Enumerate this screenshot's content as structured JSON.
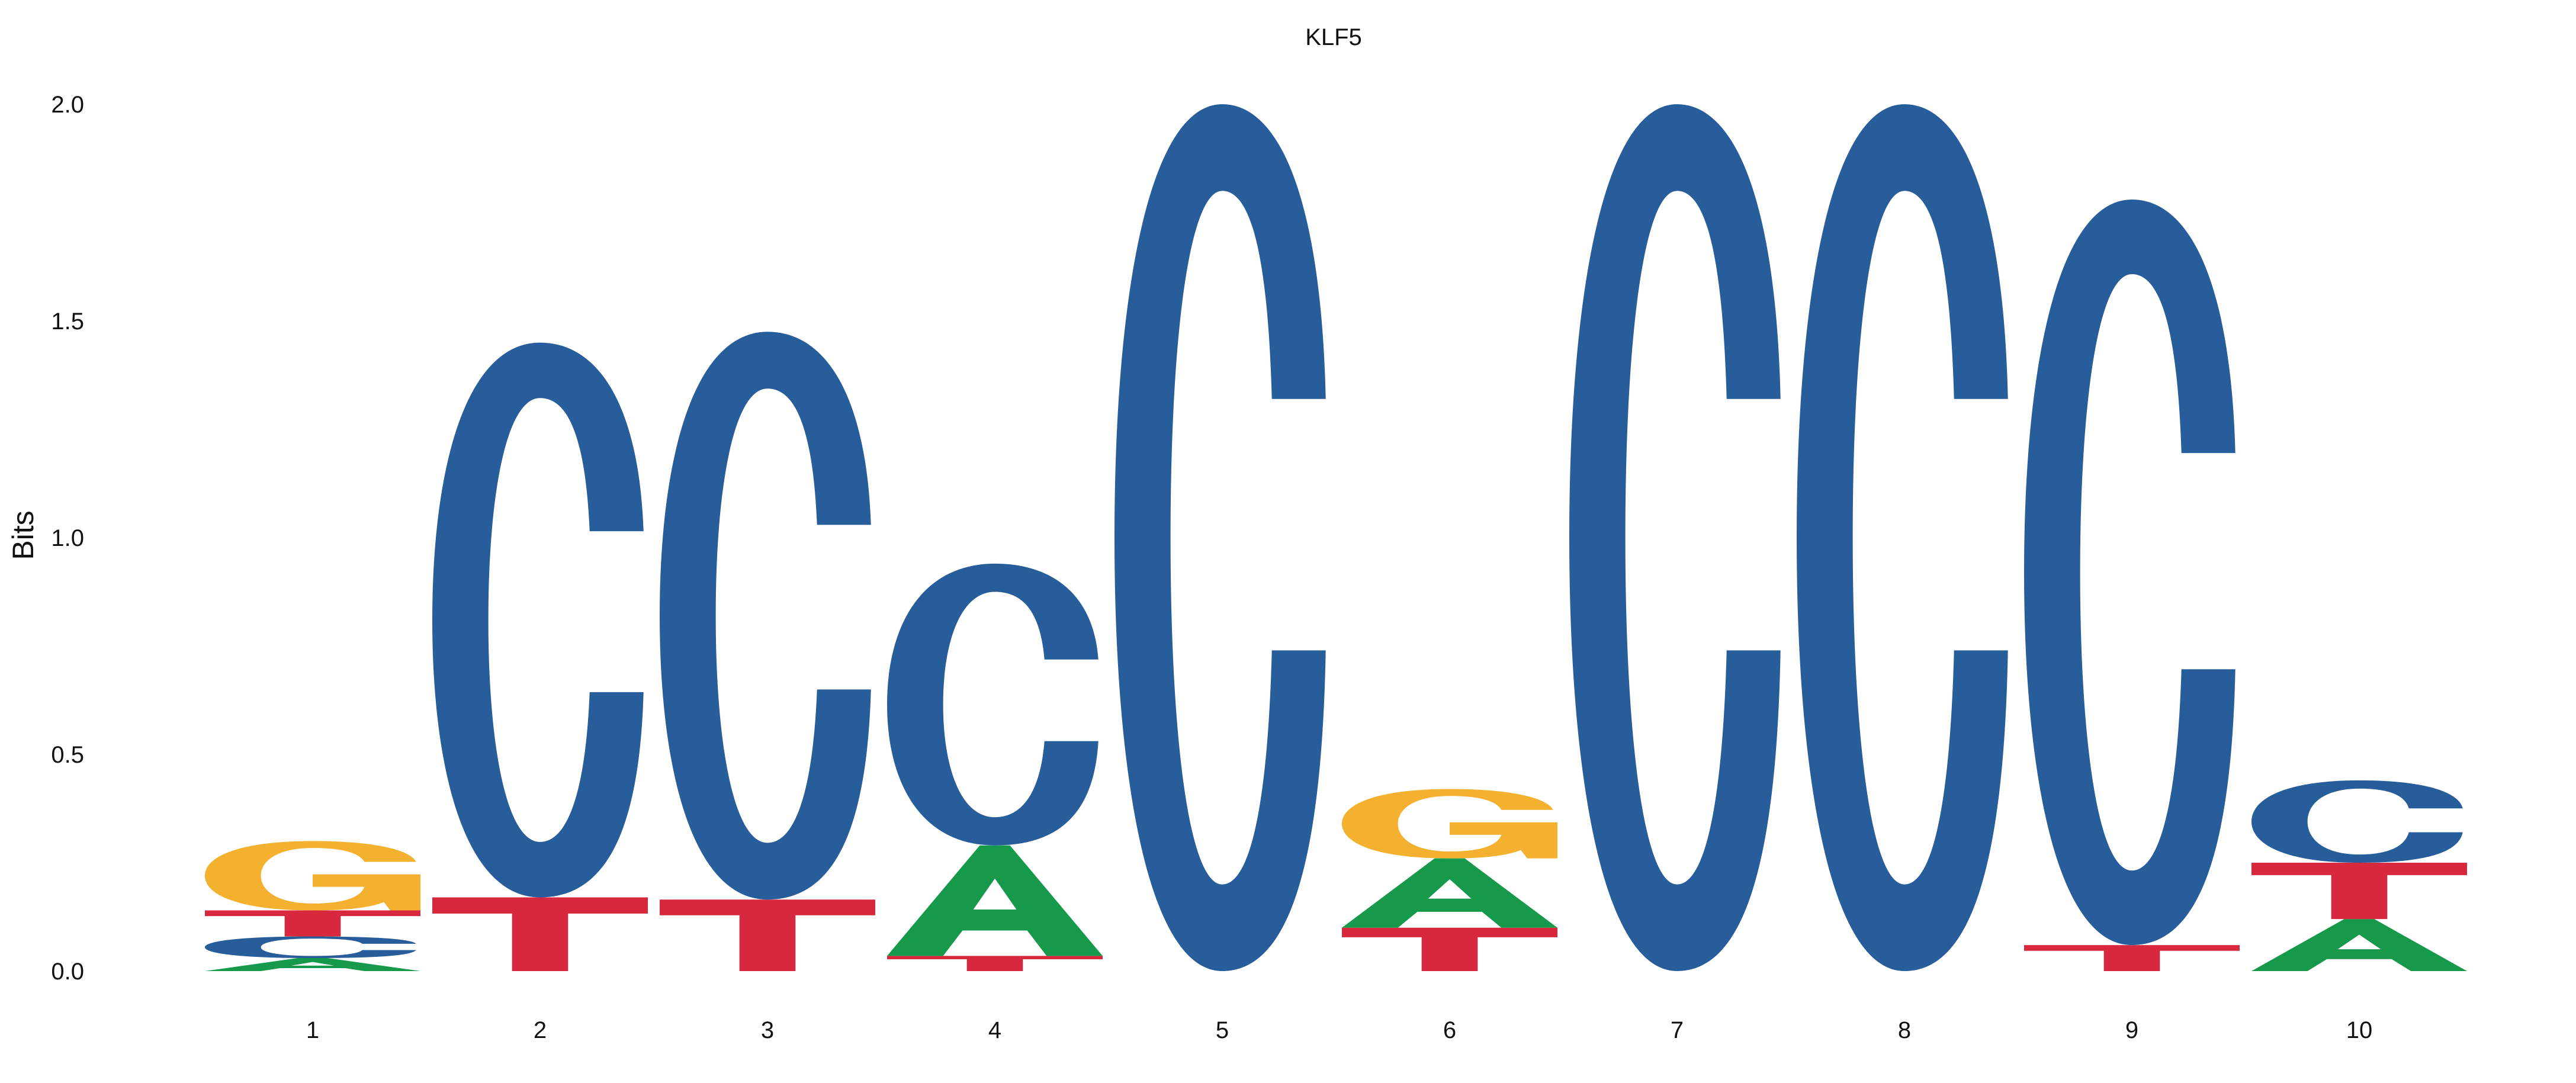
{
  "chart_data": {
    "type": "sequence-logo",
    "title": "KLF5",
    "ylabel": "Bits",
    "xlabel": "",
    "ylim": [
      0,
      2.0
    ],
    "yticks": [
      "0.0",
      "0.5",
      "1.0",
      "1.5",
      "2.0"
    ],
    "grid": false,
    "positions": [
      {
        "label": "1",
        "stack": [
          {
            "letter": "A",
            "bits": 0.03
          },
          {
            "letter": "C",
            "bits": 0.05
          },
          {
            "letter": "T",
            "bits": 0.06
          },
          {
            "letter": "G",
            "bits": 0.16
          }
        ]
      },
      {
        "label": "2",
        "stack": [
          {
            "letter": "T",
            "bits": 0.17
          },
          {
            "letter": "C",
            "bits": 1.28
          }
        ]
      },
      {
        "label": "3",
        "stack": [
          {
            "letter": "T",
            "bits": 0.165
          },
          {
            "letter": "C",
            "bits": 1.31
          }
        ]
      },
      {
        "label": "4",
        "stack": [
          {
            "letter": "T",
            "bits": 0.035
          },
          {
            "letter": "A",
            "bits": 0.255
          },
          {
            "letter": "C",
            "bits": 0.65
          }
        ]
      },
      {
        "label": "5",
        "stack": [
          {
            "letter": "C",
            "bits": 2.0
          }
        ]
      },
      {
        "label": "6",
        "stack": [
          {
            "letter": "T",
            "bits": 0.1
          },
          {
            "letter": "A",
            "bits": 0.16
          },
          {
            "letter": "G",
            "bits": 0.16
          }
        ]
      },
      {
        "label": "7",
        "stack": [
          {
            "letter": "C",
            "bits": 2.0
          }
        ]
      },
      {
        "label": "8",
        "stack": [
          {
            "letter": "C",
            "bits": 2.0
          }
        ]
      },
      {
        "label": "9",
        "stack": [
          {
            "letter": "T",
            "bits": 0.06
          },
          {
            "letter": "C",
            "bits": 1.72
          }
        ]
      },
      {
        "label": "10",
        "stack": [
          {
            "letter": "A",
            "bits": 0.12
          },
          {
            "letter": "T",
            "bits": 0.13
          },
          {
            "letter": "C",
            "bits": 0.19
          }
        ]
      }
    ],
    "colors": {
      "A": "#16994a",
      "C": "#285d9b",
      "G": "#f4b12f",
      "T": "#d8283d"
    }
  }
}
